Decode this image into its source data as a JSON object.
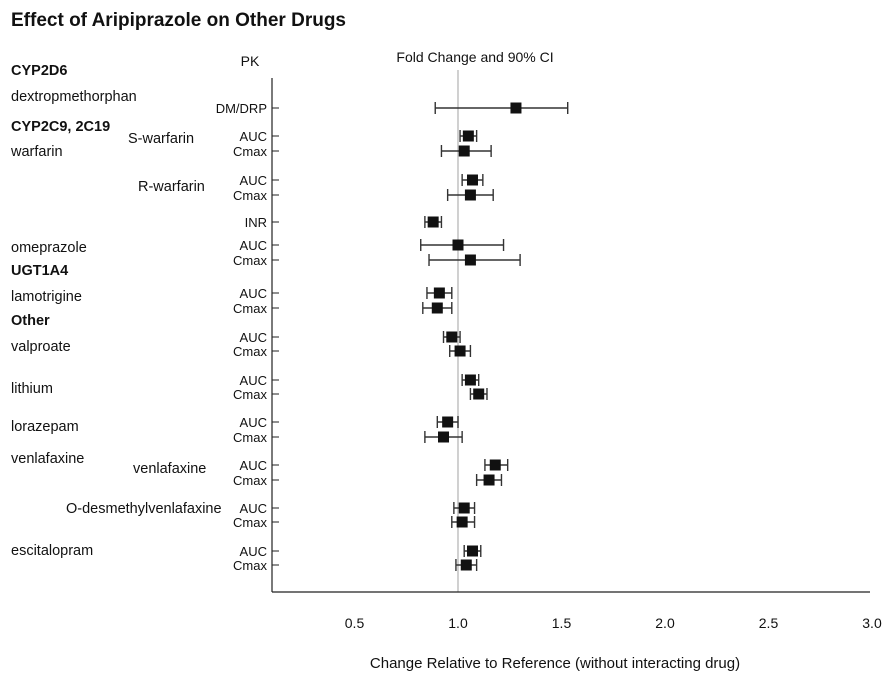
{
  "chart_data": {
    "type": "forest",
    "title": "Effect of Aripiprazole on Other Drugs",
    "pk_header": "PK",
    "ci_header": "Fold Change and 90% CI",
    "xlabel": "Change Relative to Reference (without interacting drug)",
    "xlim": [
      0.1,
      3.0
    ],
    "xticks": [
      0.5,
      1.0,
      1.5,
      2.0,
      2.5,
      3.0
    ],
    "xtick_labels": [
      "0.5",
      "1.0",
      "1.5",
      "2.0",
      "2.5",
      "3.0"
    ],
    "reference_line": 1.0,
    "labels": [
      {
        "text": "CYP2D6",
        "kind": "group"
      },
      {
        "text": "dextropmethorphan",
        "kind": "drug"
      },
      {
        "text": "CYP2C9, 2C19",
        "kind": "group"
      },
      {
        "text": "warfarin",
        "kind": "drug"
      },
      {
        "text": "S-warfarin",
        "kind": "sub"
      },
      {
        "text": "R-warfarin",
        "kind": "sub"
      },
      {
        "text": "omeprazole",
        "kind": "drug"
      },
      {
        "text": "UGT1A4",
        "kind": "group"
      },
      {
        "text": "lamotrigine",
        "kind": "drug"
      },
      {
        "text": "Other",
        "kind": "group"
      },
      {
        "text": "valproate",
        "kind": "drug"
      },
      {
        "text": "lithium",
        "kind": "drug"
      },
      {
        "text": "lorazepam",
        "kind": "drug"
      },
      {
        "text": "venlafaxine",
        "kind": "drug"
      },
      {
        "text": "venlafaxine",
        "kind": "sub"
      },
      {
        "text": "O-desmethylvenlafaxine",
        "kind": "sub"
      },
      {
        "text": "escitalopram",
        "kind": "drug"
      }
    ],
    "rows": [
      {
        "pk": "DM/DRP",
        "estimate": 1.28,
        "lower": 0.89,
        "upper": 1.53
      },
      {
        "pk": "AUC",
        "estimate": 1.05,
        "lower": 1.01,
        "upper": 1.09
      },
      {
        "pk": "Cmax",
        "estimate": 1.03,
        "lower": 0.92,
        "upper": 1.16
      },
      {
        "pk": "AUC",
        "estimate": 1.07,
        "lower": 1.02,
        "upper": 1.12
      },
      {
        "pk": "Cmax",
        "estimate": 1.06,
        "lower": 0.95,
        "upper": 1.17
      },
      {
        "pk": "INR",
        "estimate": 0.88,
        "lower": 0.84,
        "upper": 0.92
      },
      {
        "pk": "AUC",
        "estimate": 1.0,
        "lower": 0.82,
        "upper": 1.22
      },
      {
        "pk": "Cmax",
        "estimate": 1.06,
        "lower": 0.86,
        "upper": 1.3
      },
      {
        "pk": "AUC",
        "estimate": 0.91,
        "lower": 0.85,
        "upper": 0.97
      },
      {
        "pk": "Cmax",
        "estimate": 0.9,
        "lower": 0.83,
        "upper": 0.97
      },
      {
        "pk": "AUC",
        "estimate": 0.97,
        "lower": 0.93,
        "upper": 1.01
      },
      {
        "pk": "Cmax",
        "estimate": 1.01,
        "lower": 0.96,
        "upper": 1.06
      },
      {
        "pk": "AUC",
        "estimate": 1.06,
        "lower": 1.02,
        "upper": 1.1
      },
      {
        "pk": "Cmax",
        "estimate": 1.1,
        "lower": 1.06,
        "upper": 1.14
      },
      {
        "pk": "AUC",
        "estimate": 0.95,
        "lower": 0.9,
        "upper": 1.0
      },
      {
        "pk": "Cmax",
        "estimate": 0.93,
        "lower": 0.84,
        "upper": 1.02
      },
      {
        "pk": "AUC",
        "estimate": 1.18,
        "lower": 1.13,
        "upper": 1.24
      },
      {
        "pk": "Cmax",
        "estimate": 1.15,
        "lower": 1.09,
        "upper": 1.21
      },
      {
        "pk": "AUC",
        "estimate": 1.03,
        "lower": 0.98,
        "upper": 1.08
      },
      {
        "pk": "Cmax",
        "estimate": 1.02,
        "lower": 0.97,
        "upper": 1.08
      },
      {
        "pk": "AUC",
        "estimate": 1.07,
        "lower": 1.03,
        "upper": 1.11
      },
      {
        "pk": "Cmax",
        "estimate": 1.04,
        "lower": 0.99,
        "upper": 1.09
      }
    ]
  }
}
